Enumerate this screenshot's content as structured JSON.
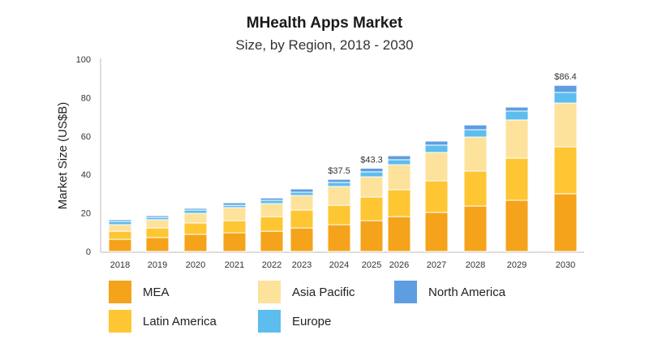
{
  "chart_data": {
    "type": "bar",
    "stacked": true,
    "title": "MHealth Apps Market",
    "subtitle": "Size, by Region, 2018 - 2030",
    "xlabel": "",
    "ylabel": "Market Size (US$B)",
    "ylim": [
      0,
      100
    ],
    "yticks": [
      0,
      20,
      40,
      60,
      80,
      100
    ],
    "grid": false,
    "legend_position": "bottom",
    "categories": [
      "2018",
      "2019",
      "2020",
      "2021",
      "2022",
      "2023",
      "2024",
      "2025",
      "2026",
      "2027",
      "2028",
      "2029",
      "2030"
    ],
    "series": [
      {
        "name": "MEA",
        "color": "#f5a31a",
        "values": [
          6.3,
          7.2,
          8.9,
          9.7,
          10.5,
          12.2,
          13.9,
          16.0,
          18.1,
          20.3,
          23.6,
          26.6,
          30.0
        ]
      },
      {
        "name": "Latin America",
        "color": "#fec632",
        "values": [
          4.2,
          5.0,
          5.9,
          6.3,
          7.6,
          9.3,
          10.1,
          12.3,
          14.0,
          16.4,
          18.2,
          21.9,
          24.4
        ]
      },
      {
        "name": "Asia Pacific",
        "color": "#fde29b",
        "values": [
          3.4,
          4.3,
          5.0,
          6.8,
          6.8,
          7.6,
          9.8,
          10.5,
          13.0,
          14.8,
          17.7,
          19.9,
          22.8
        ]
      },
      {
        "name": "Europe",
        "color": "#5dbdef",
        "values": [
          1.7,
          1.2,
          1.7,
          1.2,
          1.7,
          1.7,
          2.1,
          2.6,
          2.6,
          3.8,
          3.8,
          4.6,
          5.5
        ]
      },
      {
        "name": "North America",
        "color": "#5e9ee0",
        "values": [
          0.9,
          0.9,
          0.9,
          1.3,
          1.2,
          1.7,
          1.6,
          1.9,
          2.1,
          2.1,
          2.5,
          2.1,
          3.7
        ]
      }
    ],
    "annotations": [
      {
        "category": "2024",
        "text": "$37.5"
      },
      {
        "category": "2025",
        "text": "$43.3"
      },
      {
        "category": "2030",
        "text": "$86.4"
      }
    ]
  }
}
